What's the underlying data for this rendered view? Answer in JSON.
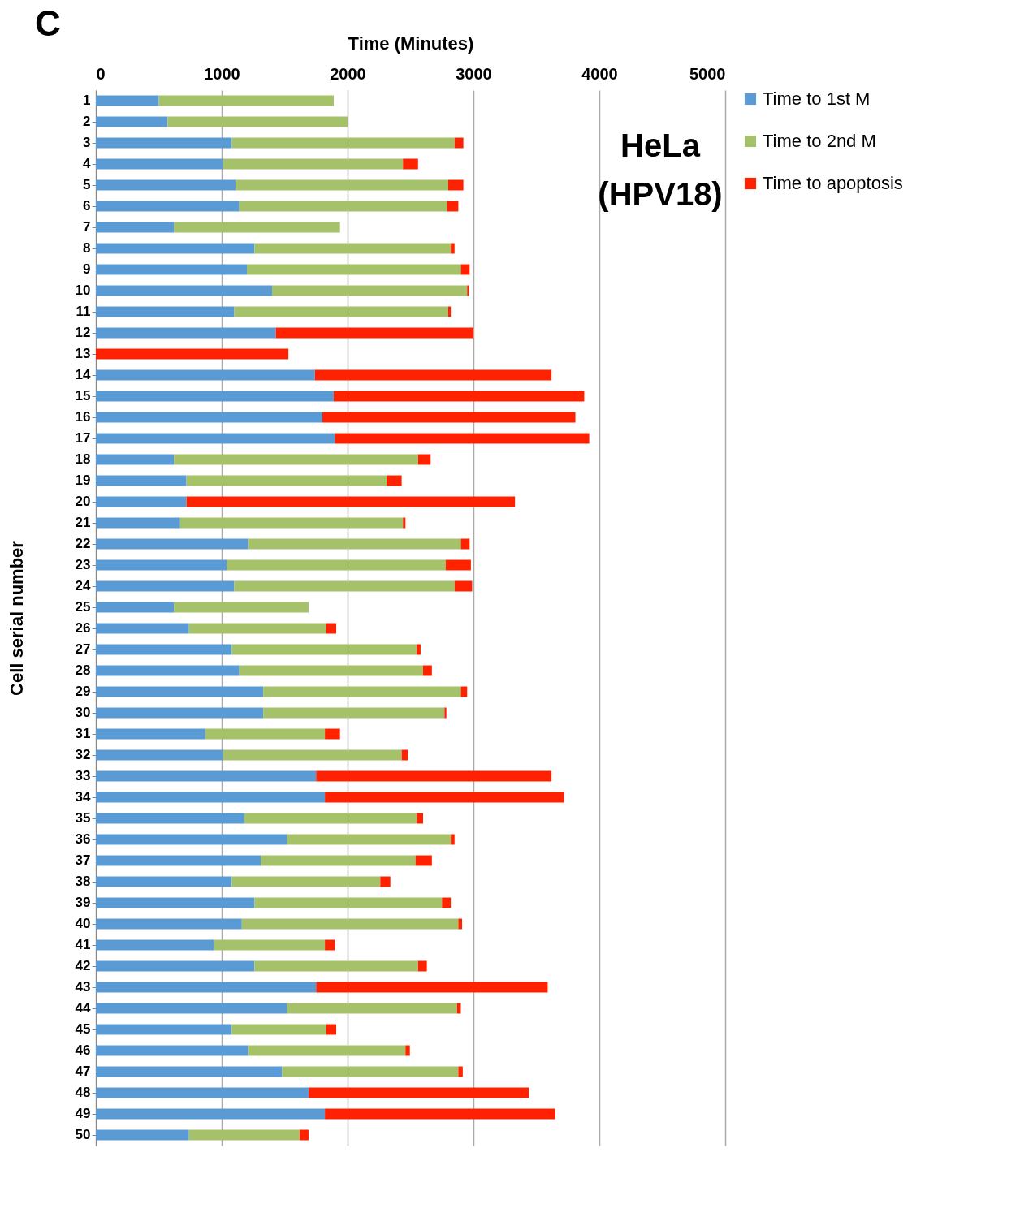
{
  "chart_data": {
    "type": "bar",
    "orientation": "horizontal",
    "stacked": true,
    "xlabel": "Time (Minutes)",
    "ylabel": "Cell serial number",
    "annotations": [
      "C",
      "HeLa (HPV18)"
    ],
    "xlim": [
      0,
      5000
    ],
    "xticks": [
      0,
      1000,
      2000,
      3000,
      4000,
      5000
    ],
    "grid": "x",
    "legend": "right",
    "categories": [
      "1",
      "2",
      "3",
      "4",
      "5",
      "6",
      "7",
      "8",
      "9",
      "10",
      "11",
      "12",
      "13",
      "14",
      "15",
      "16",
      "17",
      "18",
      "19",
      "20",
      "21",
      "22",
      "23",
      "24",
      "25",
      "26",
      "27",
      "28",
      "29",
      "30",
      "31",
      "32",
      "33",
      "34",
      "35",
      "36",
      "37",
      "38",
      "39",
      "40",
      "41",
      "42",
      "43",
      "44",
      "45",
      "46",
      "47",
      "48",
      "49",
      "50"
    ],
    "series": [
      {
        "name": "Time to 1st M",
        "color": "#5b9bd5",
        "values": [
          500,
          570,
          1080,
          1010,
          1110,
          1140,
          620,
          1260,
          1200,
          1400,
          1100,
          1430,
          null,
          1740,
          1890,
          1800,
          1900,
          620,
          720,
          720,
          670,
          1210,
          1040,
          1100,
          620,
          740,
          1080,
          1140,
          1330,
          1330,
          870,
          1010,
          1750,
          1820,
          1180,
          1520,
          1310,
          1080,
          1260,
          1160,
          940,
          1260,
          1750,
          1520,
          1080,
          1210,
          1480,
          1690,
          1820,
          740
        ]
      },
      {
        "name": "Time to 2nd M",
        "color": "#a5c26b",
        "values": [
          1390,
          1430,
          1770,
          1430,
          1690,
          1650,
          1320,
          1560,
          1700,
          1550,
          1700,
          null,
          null,
          null,
          null,
          null,
          null,
          1940,
          1590,
          null,
          1770,
          1690,
          1740,
          1750,
          1070,
          1090,
          1470,
          1460,
          1570,
          1440,
          950,
          1420,
          null,
          null,
          1370,
          1300,
          1230,
          1180,
          1490,
          1720,
          880,
          1300,
          null,
          1350,
          750,
          1250,
          1400,
          null,
          null,
          880
        ]
      },
      {
        "name": "Time to apoptosis",
        "color": "#ff2200",
        "values": [
          null,
          null,
          70,
          120,
          120,
          90,
          null,
          30,
          70,
          15,
          20,
          1570,
          1530,
          1880,
          1990,
          2010,
          2020,
          100,
          120,
          2610,
          20,
          70,
          200,
          140,
          null,
          80,
          30,
          70,
          50,
          15,
          120,
          50,
          1870,
          1900,
          50,
          30,
          130,
          80,
          70,
          30,
          80,
          70,
          1840,
          30,
          80,
          35,
          35,
          1750,
          1830,
          70
        ]
      }
    ]
  }
}
